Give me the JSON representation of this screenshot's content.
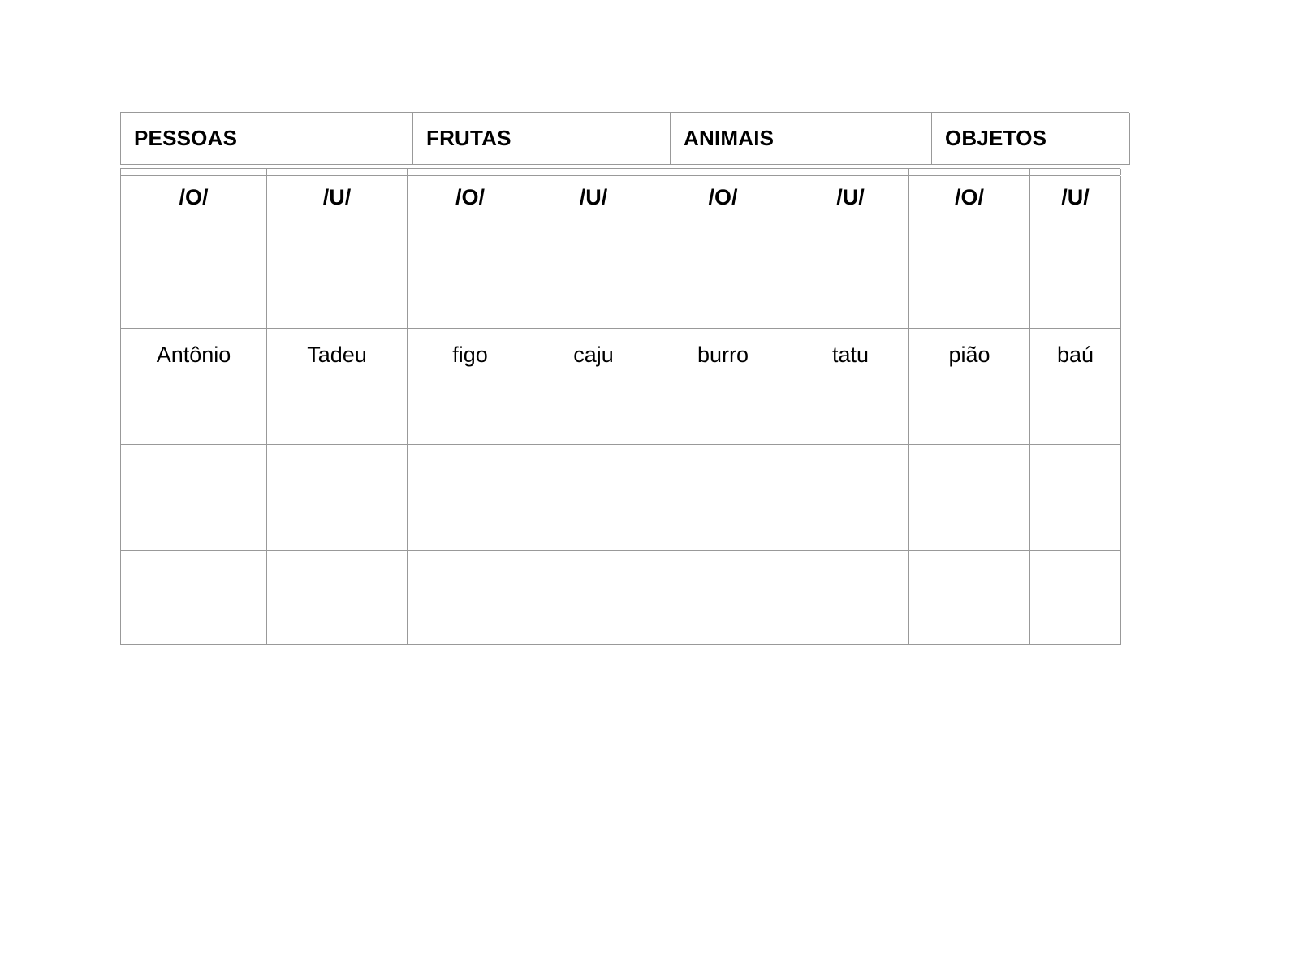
{
  "worksheet": {
    "title_row": {
      "description": "category headers",
      "labels": [
        "PESSOAS",
        "FRUTAS",
        "ANIMAIS",
        "OBJETOS"
      ]
    },
    "categories": [
      {
        "label": "PESSOAS",
        "phonemes": [
          "/O/",
          "/U/"
        ],
        "answers": [
          "Antônio",
          "Tadeu"
        ]
      },
      {
        "label": "FRUTAS",
        "phonemes": [
          "/O/",
          "/U/"
        ],
        "answers": [
          "figo",
          "caju"
        ]
      },
      {
        "label": "ANIMAIS",
        "phonemes": [
          "/O/",
          "/U/"
        ],
        "answers": [
          "burro",
          "tatu"
        ]
      },
      {
        "label": "OBJETOS",
        "phonemes": [
          "/O/",
          "/U/"
        ],
        "answers": [
          "pião",
          "baú"
        ]
      }
    ],
    "empty_row_count": 2,
    "colors": {
      "border": "#999999",
      "text": "#000000",
      "background": "#ffffff"
    }
  }
}
